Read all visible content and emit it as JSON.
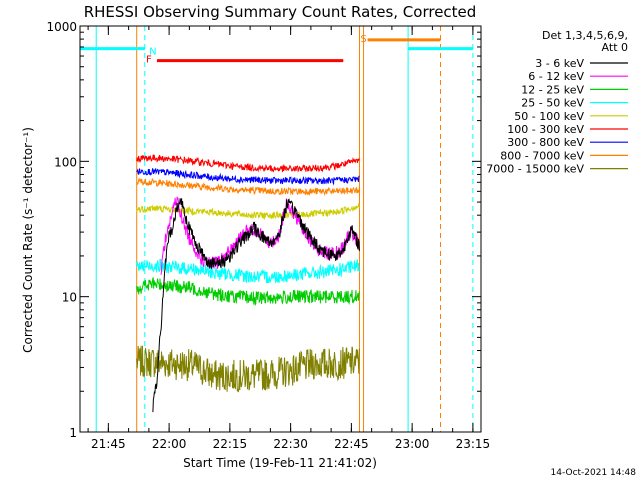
{
  "chart_data": {
    "type": "line",
    "title": "RHESSI Observing Summary Count Rates, Corrected",
    "xlabel": "Start Time (19-Feb-11 21:41:02)",
    "ylabel": "Corrected Count Rate (s⁻¹ detector⁻¹)",
    "y_scale": "log",
    "ylim": [
      1,
      1000
    ],
    "xlim_minutes_since_start": [
      -3,
      96
    ],
    "y_ticks": [
      1,
      10,
      100,
      1000
    ],
    "y_tick_labels": [
      "1",
      "10",
      "100",
      "1000"
    ],
    "x_tick_minutes": [
      4,
      19,
      34,
      49,
      64,
      79,
      94
    ],
    "x_tick_labels": [
      "21:45",
      "22:00",
      "22:15",
      "22:30",
      "22:45",
      "23:00",
      "23:15"
    ],
    "legend_header": [
      "Det 1,3,4,5,6,9,",
      "Att 0"
    ],
    "legend_position": "right",
    "series": [
      {
        "name": "3 - 6 keV",
        "color": "#000000",
        "x": [
          15,
          16,
          17,
          18,
          19,
          20,
          21,
          22,
          23,
          24,
          25,
          26,
          27,
          28,
          29,
          30,
          31,
          32,
          34,
          36,
          38,
          40,
          42,
          44,
          46,
          48,
          50,
          52,
          54,
          56,
          58,
          60,
          62,
          63,
          64,
          65,
          66
        ],
        "y": [
          1.5,
          2.5,
          6,
          17,
          28,
          34,
          46,
          52,
          40,
          32,
          27,
          24,
          21,
          19,
          18,
          17.5,
          17.5,
          18,
          20,
          24,
          28,
          32,
          28,
          25,
          28,
          48,
          44,
          34,
          27,
          23,
          21,
          20,
          22,
          28,
          31,
          27,
          24
        ]
      },
      {
        "name": "6 - 12 keV",
        "color": "#ff00ff",
        "x": [
          17,
          18,
          19,
          20,
          21,
          22,
          23,
          24,
          25,
          26,
          27,
          28,
          29,
          30,
          31,
          32,
          34,
          36,
          38,
          40,
          42,
          44,
          46,
          48,
          50,
          52,
          54,
          56,
          58,
          60,
          62,
          63,
          64,
          65,
          66
        ],
        "y": [
          16,
          26,
          34,
          45,
          52,
          40,
          32,
          27,
          24,
          21,
          19,
          18,
          17.5,
          17.5,
          18,
          19,
          22,
          26,
          30,
          32,
          28,
          25,
          28,
          48,
          40,
          32,
          26,
          22,
          21,
          21,
          23,
          27,
          30,
          27,
          24
        ]
      },
      {
        "name": "12 - 25 keV",
        "color": "#00cc00",
        "x": [
          11,
          15,
          20,
          25,
          30,
          35,
          40,
          45,
          50,
          55,
          60,
          66
        ],
        "y": [
          11.5,
          12.5,
          12,
          11.5,
          10.5,
          10,
          9.8,
          9.8,
          10,
          10,
          10,
          10
        ]
      },
      {
        "name": "25 - 50 keV",
        "color": "#00ffff",
        "x": [
          11,
          15,
          20,
          25,
          30,
          35,
          40,
          45,
          50,
          55,
          60,
          66
        ],
        "y": [
          16.5,
          17,
          16.5,
          16,
          15,
          14.5,
          14,
          14,
          14.5,
          15,
          15.5,
          17
        ]
      },
      {
        "name": "50 - 100 keV",
        "color": "#cccc00",
        "x": [
          11,
          15,
          20,
          25,
          30,
          35,
          40,
          45,
          50,
          55,
          60,
          66
        ],
        "y": [
          44,
          45,
          44,
          43,
          42,
          41,
          40,
          40,
          40,
          41,
          42,
          47
        ]
      },
      {
        "name": "100 - 300 keV",
        "color": "#ff0000",
        "x": [
          11,
          15,
          20,
          25,
          30,
          35,
          40,
          45,
          50,
          55,
          60,
          66
        ],
        "y": [
          105,
          106,
          104,
          100,
          96,
          92,
          90,
          88,
          88,
          89,
          92,
          102
        ]
      },
      {
        "name": "300 - 800 keV",
        "color": "#0000ff",
        "x": [
          11,
          15,
          20,
          25,
          30,
          35,
          40,
          45,
          50,
          55,
          60,
          66
        ],
        "y": [
          84,
          84,
          82,
          79,
          76,
          74,
          73,
          72,
          72,
          72,
          72,
          74
        ]
      },
      {
        "name": "800 - 7000 keV",
        "color": "#ff8000",
        "x": [
          11,
          15,
          20,
          25,
          30,
          35,
          40,
          45,
          50,
          55,
          60,
          66
        ],
        "y": [
          71,
          70,
          68,
          66,
          64,
          62,
          61,
          60,
          60,
          60,
          60,
          61
        ]
      },
      {
        "name": "7000 - 15000 keV",
        "color": "#808000",
        "x": [
          11,
          15,
          20,
          25,
          30,
          35,
          40,
          45,
          50,
          55,
          60,
          66
        ],
        "y": [
          3.3,
          3.3,
          3.2,
          3.1,
          2.6,
          2.6,
          2.6,
          2.7,
          2.9,
          3.2,
          3.2,
          3.3
        ]
      }
    ],
    "flags": [
      {
        "label": "N",
        "color": "#00ffff",
        "level": 680,
        "segments": [
          [
            -3,
            13
          ],
          [
            78,
            94
          ]
        ],
        "label_minute": 15
      },
      {
        "label": "F",
        "color": "#ff0000",
        "level": 555,
        "segments": [
          [
            16,
            62
          ]
        ],
        "label_minute": 14
      },
      {
        "label": "S",
        "color": "#ff8000",
        "level": 790,
        "segments": [
          [
            68,
            86
          ]
        ],
        "label_minute": 67
      }
    ],
    "vertical_lines": [
      {
        "minute": 1,
        "color": "#00ffff",
        "style": "solid"
      },
      {
        "minute": 13,
        "color": "#00ffff",
        "style": "dashed"
      },
      {
        "minute": 78,
        "color": "#00ffff",
        "style": "solid"
      },
      {
        "minute": 94,
        "color": "#00ffff",
        "style": "dashed"
      },
      {
        "minute": 11,
        "color": "#ff8000",
        "style": "solid"
      },
      {
        "minute": 66,
        "color": "#ff8000",
        "style": "solid"
      },
      {
        "minute": 67,
        "color": "#ff8000",
        "style": "solid"
      },
      {
        "minute": 86,
        "color": "#ff8000",
        "style": "dashed"
      }
    ]
  },
  "timestamp": "14-Oct-2021 14:48"
}
